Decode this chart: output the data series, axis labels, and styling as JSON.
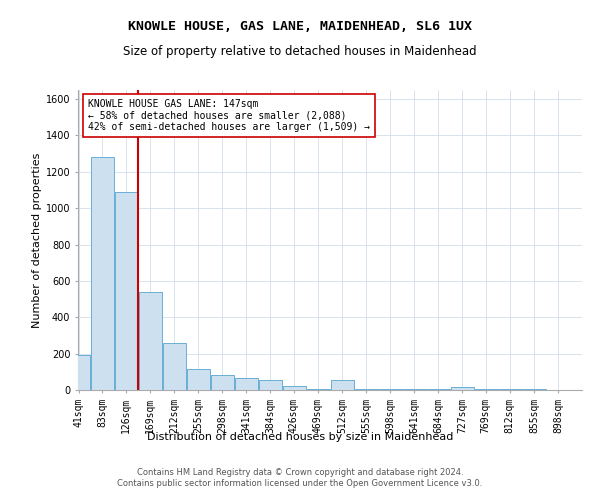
{
  "title": "KNOWLE HOUSE, GAS LANE, MAIDENHEAD, SL6 1UX",
  "subtitle": "Size of property relative to detached houses in Maidenhead",
  "xlabel": "Distribution of detached houses by size in Maidenhead",
  "ylabel": "Number of detached properties",
  "footer_line1": "Contains HM Land Registry data © Crown copyright and database right 2024.",
  "footer_line2": "Contains public sector information licensed under the Open Government Licence v3.0.",
  "bins": [
    41,
    83,
    126,
    169,
    212,
    255,
    298,
    341,
    384,
    426,
    469,
    512,
    555,
    598,
    641,
    684,
    727,
    769,
    812,
    855,
    898
  ],
  "values": [
    190,
    1280,
    1090,
    540,
    260,
    115,
    80,
    65,
    55,
    20,
    5,
    55,
    5,
    5,
    5,
    5,
    15,
    5,
    5,
    5
  ],
  "bar_color": "#cce0f0",
  "bar_edge_color": "#6aafd6",
  "bar_edge_width": 0.7,
  "property_size": 147,
  "property_label": "KNOWLE HOUSE GAS LANE: 147sqm",
  "annotation_line1": "← 58% of detached houses are smaller (2,088)",
  "annotation_line2": "42% of semi-detached houses are larger (1,509) →",
  "vline_color": "#cc0000",
  "annotation_box_color": "#ffffff",
  "annotation_box_edge": "#cc0000",
  "ylim": [
    0,
    1650
  ],
  "yticks": [
    0,
    200,
    400,
    600,
    800,
    1000,
    1200,
    1400,
    1600
  ],
  "bg_color": "#ffffff",
  "grid_color": "#c8d8e8",
  "title_fontsize": 9.5,
  "subtitle_fontsize": 8.5,
  "axis_label_fontsize": 8,
  "tick_fontsize": 7,
  "annotation_fontsize": 7,
  "footer_fontsize": 6
}
